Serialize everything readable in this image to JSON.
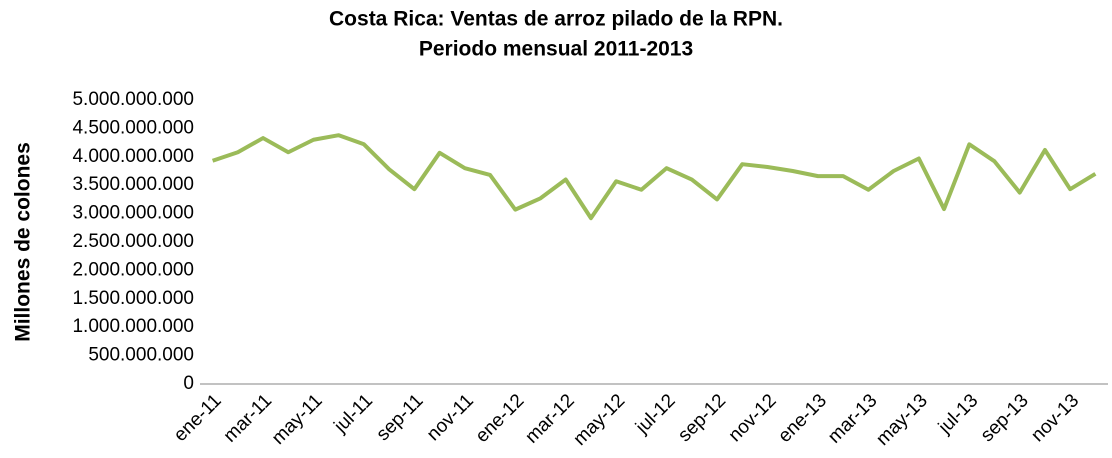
{
  "chart_data": {
    "type": "line",
    "title": "Costa Rica: Ventas de arroz pilado de la RPN.",
    "subtitle": "Periodo mensual 2011-2013",
    "ylabel": "Millones de colones",
    "categories": [
      "ene-11",
      null,
      "mar-11",
      null,
      "may-11",
      null,
      "jul-11",
      null,
      "sep-11",
      null,
      "nov-11",
      null,
      "ene-12",
      null,
      "mar-12",
      null,
      "may-12",
      null,
      "jul-12",
      null,
      "sep-12",
      null,
      "nov-12",
      null,
      "ene-13",
      null,
      "mar-13",
      null,
      "may-13",
      null,
      "jul-13",
      null,
      "sep-13",
      null,
      "nov-13",
      null
    ],
    "series": [
      {
        "color": "#9bbb59",
        "values": [
          3930000000,
          4080000000,
          4330000000,
          4080000000,
          4300000000,
          4380000000,
          4220000000,
          3780000000,
          3430000000,
          4070000000,
          3800000000,
          3680000000,
          3070000000,
          3270000000,
          3600000000,
          2920000000,
          3570000000,
          3420000000,
          3800000000,
          3600000000,
          3250000000,
          3870000000,
          3820000000,
          3750000000,
          3660000000,
          3660000000,
          3420000000,
          3750000000,
          3970000000,
          3080000000,
          4220000000,
          3920000000,
          3370000000,
          4120000000,
          3430000000,
          3700000000
        ]
      }
    ],
    "ylim": [
      0,
      5000000000
    ],
    "yticks": [
      0,
      {
        "value": 500000000,
        "label": "500.000.000"
      },
      {
        "value": 1000000000,
        "label": "1.000.000.000"
      },
      {
        "value": 1500000000,
        "label": "1.500.000.000"
      },
      {
        "value": 2000000000,
        "label": "2.000.000.000"
      },
      {
        "value": 2500000000,
        "label": "2.500.000.000"
      },
      {
        "value": 3000000000,
        "label": "3.000.000.000"
      },
      {
        "value": 3500000000,
        "label": "3.500.000.000"
      },
      {
        "value": 4000000000,
        "label": "4.000.000.000"
      },
      {
        "value": 4500000000,
        "label": "4.500.000.000"
      },
      {
        "value": 5000000000,
        "label": "5.000.000.000"
      }
    ],
    "grid": false
  }
}
